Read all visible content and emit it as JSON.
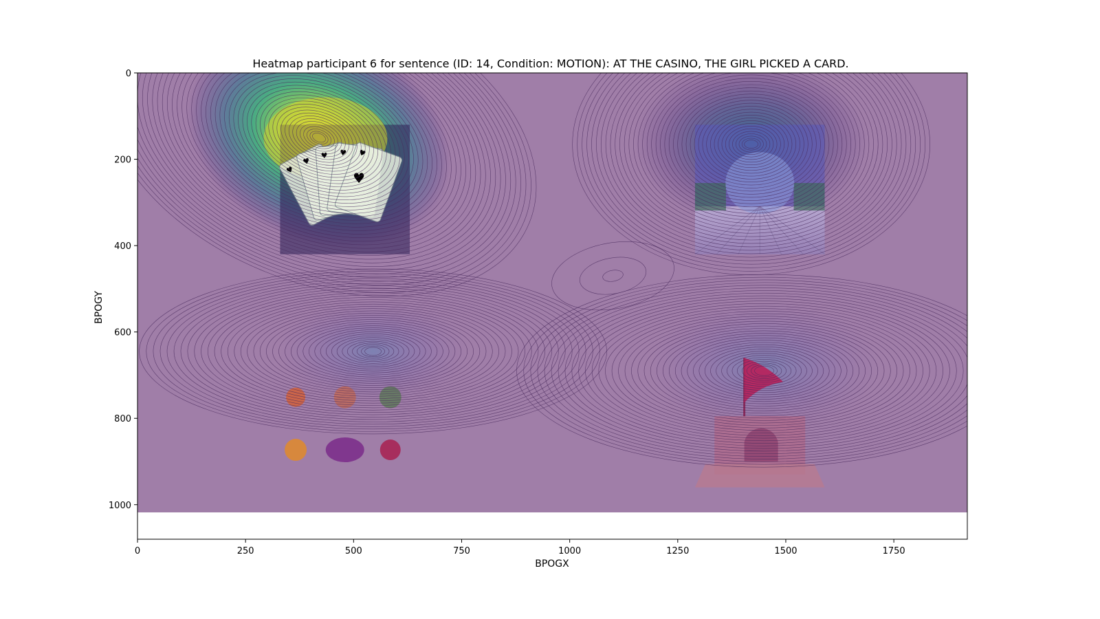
{
  "chart_data": {
    "type": "heatmap",
    "title": "Heatmap participant 6 for sentence (ID: 14, Condition: MOTION):  AT THE CASINO, THE GIRL PICKED A CARD.",
    "xlabel": "BPOGX",
    "ylabel": "BPOGY",
    "xlim": [
      0,
      1920
    ],
    "ylim": [
      1080,
      0
    ],
    "heatmap_extent": {
      "x": [
        0,
        1920
      ],
      "y": [
        0,
        1017
      ]
    },
    "x_ticks": [
      0,
      250,
      500,
      750,
      1000,
      1250,
      1500,
      1750
    ],
    "y_ticks": [
      0,
      200,
      400,
      600,
      800,
      1000
    ],
    "colormap": "viridis",
    "overlay_alpha": 0.5,
    "grid": false,
    "fixation_clusters": [
      {
        "x": 420,
        "y": 150,
        "weight": 1.0
      },
      {
        "x": 1420,
        "y": 160,
        "weight": 0.42
      },
      {
        "x": 545,
        "y": 645,
        "weight": 0.3
      },
      {
        "x": 1450,
        "y": 680,
        "weight": 0.3
      }
    ],
    "stimuli": [
      {
        "name": "playing-cards",
        "x": [
          330,
          630
        ],
        "y": [
          120,
          420
        ]
      },
      {
        "name": "casino-interior",
        "x": [
          1290,
          1590
        ],
        "y": [
          120,
          420
        ]
      },
      {
        "name": "vegetables",
        "x": [
          330,
          630
        ],
        "y": [
          705,
          915
        ]
      },
      {
        "name": "sandcastle",
        "x": [
          1290,
          1590
        ],
        "y": [
          660,
          960
        ]
      }
    ],
    "colors": {
      "background_purple": "#a07ea8",
      "contour": "#4a2a5e",
      "viridis_high": "#fde725",
      "viridis_mid": "#21918c",
      "viridis_low": "#3b528b"
    }
  }
}
